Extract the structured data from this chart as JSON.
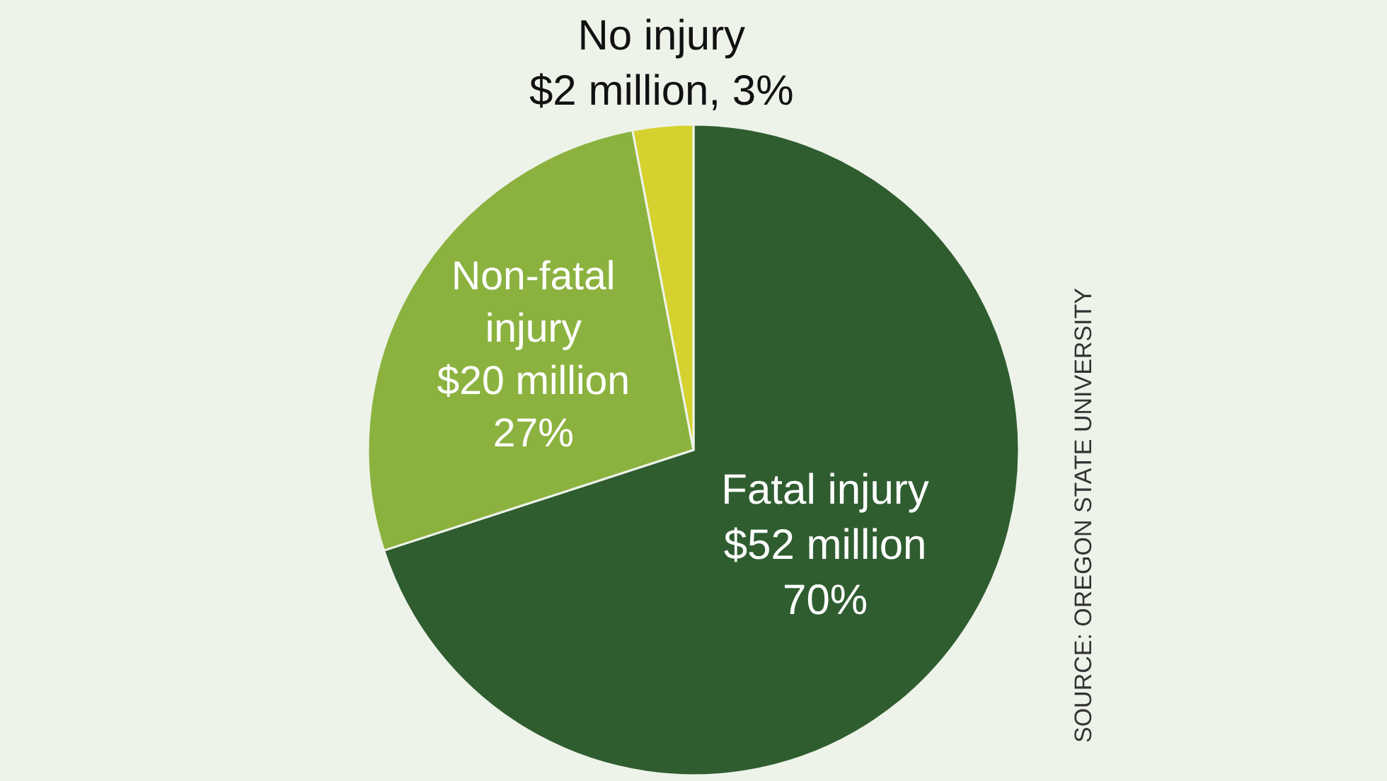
{
  "chart_data": {
    "type": "pie",
    "categories": [
      "Fatal injury",
      "Non-fatal injury",
      "No injury"
    ],
    "values": [
      70,
      27,
      3
    ],
    "value_labels": [
      "$52 million 70%",
      "$20 million 27%",
      "$2 million, 3%"
    ],
    "colors": [
      "#2f5d30",
      "#8bb23f",
      "#d5d22f"
    ],
    "annotations": [
      "SOURCE: OREGON STATE UNIVERSITY"
    ],
    "legend": false
  }
}
